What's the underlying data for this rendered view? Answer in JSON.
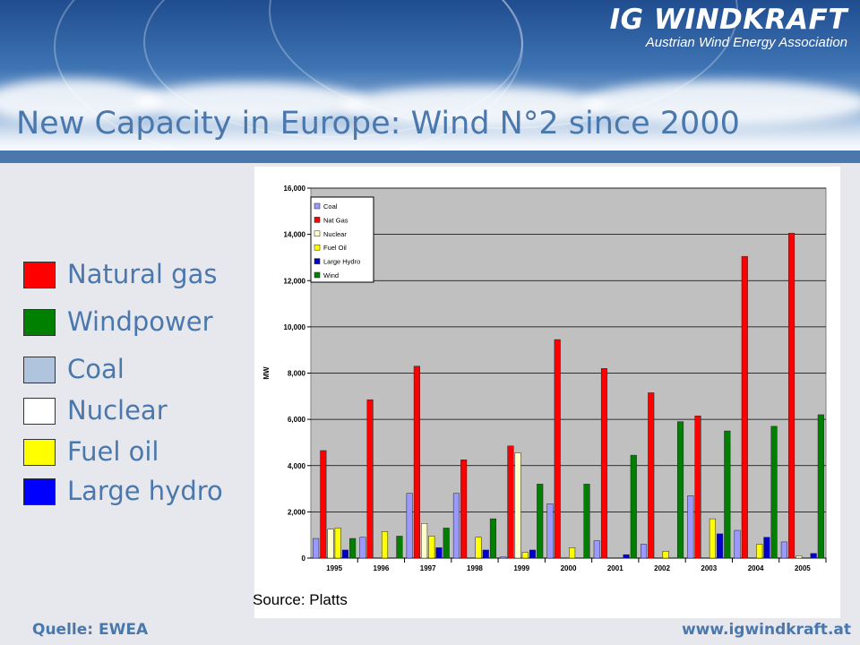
{
  "header": {
    "logo_main": "IG WINDKRAFT",
    "logo_sub": "Austrian Wind Energy Association",
    "title": "New Capacity in Europe: Wind N°2 since 2000"
  },
  "side_legend": [
    {
      "label": "Natural gas",
      "color": "#ff0000"
    },
    {
      "label": "Windpower",
      "color": "#008000"
    },
    {
      "label": "Coal",
      "color": "#b0c4de"
    },
    {
      "label": "Nuclear",
      "color": "#ffffff"
    },
    {
      "label": "Fuel oil",
      "color": "#ffff00"
    },
    {
      "label": "Large hydro",
      "color": "#0000ff"
    }
  ],
  "chart_data": {
    "type": "bar",
    "ylabel": "MW",
    "ylim": [
      0,
      16000
    ],
    "yticks": [
      "0",
      "2,000",
      "4,000",
      "6,000",
      "8,000",
      "10,000",
      "12,000",
      "14,000",
      "16,000"
    ],
    "grid": true,
    "legend_position": "top-left",
    "categories": [
      "1995",
      "1996",
      "1997",
      "1998",
      "1999",
      "2000",
      "2001",
      "2002",
      "2003",
      "2004",
      "2005"
    ],
    "series": [
      {
        "name": "Coal",
        "color": "#9999ff",
        "values": [
          850,
          900,
          2800,
          2800,
          50,
          2350,
          750,
          600,
          2700,
          1200,
          700
        ]
      },
      {
        "name": "Nat Gas",
        "color": "#ff0000",
        "values": [
          4650,
          6850,
          8300,
          4250,
          4850,
          9450,
          8200,
          7150,
          6150,
          13050,
          14050
        ]
      },
      {
        "name": "Nuclear",
        "color": "#ffffcc",
        "values": [
          1250,
          0,
          1500,
          0,
          4550,
          0,
          0,
          0,
          0,
          0,
          100
        ]
      },
      {
        "name": "Fuel Oil",
        "color": "#ffff00",
        "values": [
          1300,
          1150,
          950,
          900,
          250,
          450,
          0,
          300,
          1700,
          600,
          0
        ]
      },
      {
        "name": "Large Hydro",
        "color": "#0000cc",
        "values": [
          350,
          0,
          450,
          350,
          350,
          0,
          150,
          0,
          1050,
          900,
          200
        ]
      },
      {
        "name": "Wind",
        "color": "#008000",
        "values": [
          850,
          950,
          1300,
          1700,
          3200,
          3200,
          4450,
          5900,
          5500,
          5700,
          6200
        ]
      }
    ]
  },
  "source": "Source: Platts",
  "footer": {
    "left": "Quelle: EWEA",
    "right": "www.igwindkraft.at"
  }
}
